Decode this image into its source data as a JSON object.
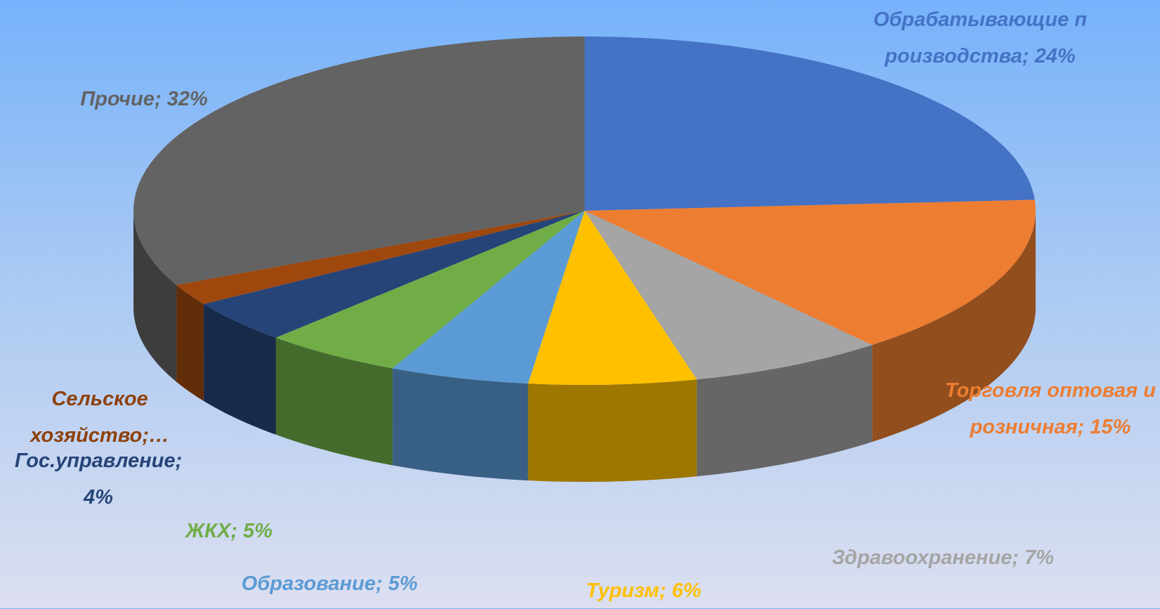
{
  "chart_data": {
    "type": "pie3d",
    "values": [
      24,
      15,
      7,
      6,
      5,
      5,
      4,
      2,
      32
    ],
    "value_labels": [
      "Обрабатывающие производства; 24%",
      "Торговля оптовая и розничная; 15%",
      "Здравоохранение; 7%",
      "Туризм; 6%",
      "Образование; 5%",
      "ЖКХ; 5%",
      "Гос.управление; 4%",
      "Сельское хозяйство;…",
      "Прочие; 32%"
    ],
    "colors": [
      "#4472c4",
      "#ed7d31",
      "#a5a5a5",
      "#ffc000",
      "#5b9bd5",
      "#70ad47",
      "#264478",
      "#9e480e",
      "#636363"
    ]
  }
}
